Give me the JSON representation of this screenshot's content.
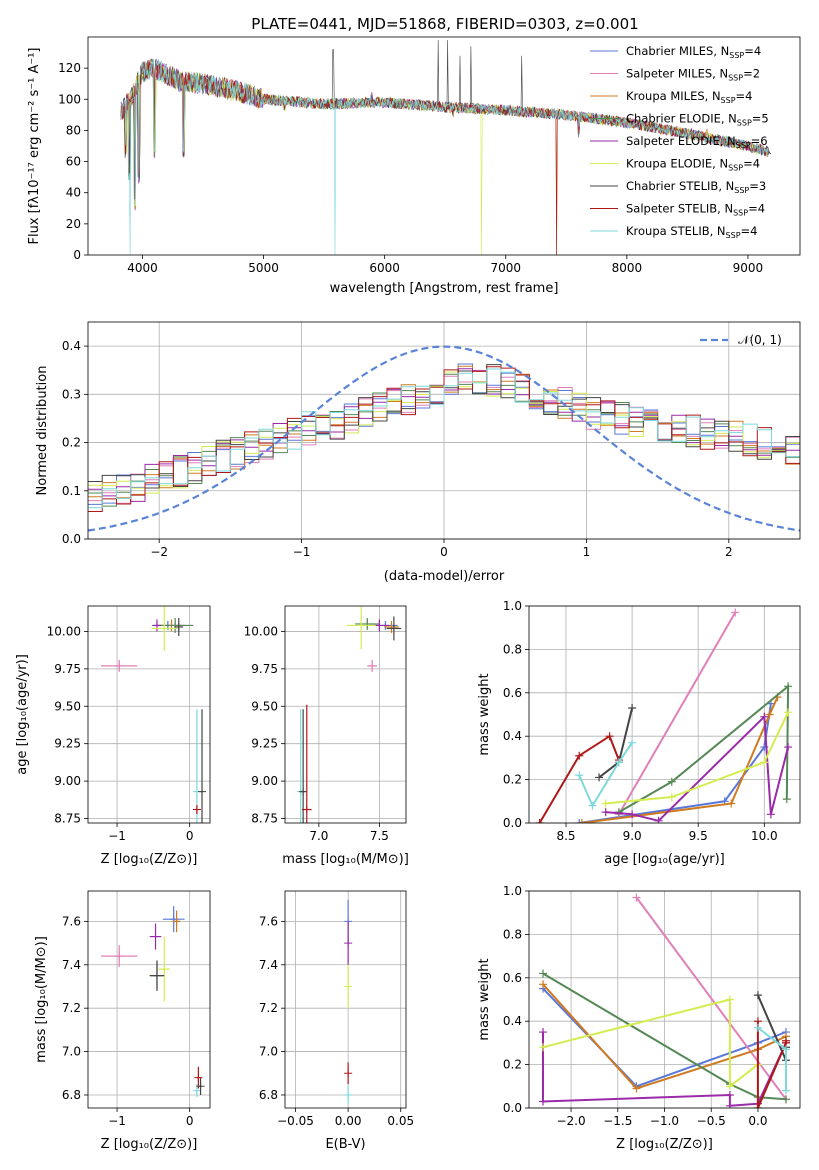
{
  "title": "PLATE=0441, MJD=51868, FIBERID=0303, z=0.001",
  "colors": {
    "Chabrier MILES": "#5a78d8",
    "Salpeter MILES": "#e07fb8",
    "Kroupa MILES": "#d07a20",
    "Chabrier ELODIE": "#558855",
    "Salpeter ELODIE": "#9a2aa8",
    "Kroupa ELODIE": "#d4ec50",
    "Chabrier STELIB": "#444444",
    "Salpeter STELIB": "#b01818",
    "Kroupa STELIB": "#7ed8dc",
    "normal": "#5a84d8"
  },
  "labels": {
    "spectrum_x": "wavelength [Angstrom, rest frame]",
    "spectrum_y": "Flux [fλ10⁻¹⁷ erg cm⁻² s⁻¹ A⁻¹]",
    "resid_x": "(data-model)/error",
    "resid_y": "Normed distribution",
    "normal_legend": "𝒩(0, 1)",
    "age_y": "age  [log₁₀(age/yr)]",
    "z_x": "Z [log₁₀(Z/Z⊙)]",
    "mass_x": "mass [log₁₀(M/M⊙)]",
    "mass_y": "mass [log₁₀(M/M⊙)]",
    "weight_y": "mass weight",
    "ebv_x": "E(B-V)"
  },
  "legend": [
    {
      "model": "Chabrier MILES",
      "label": "Chabrier MILES, N",
      "sub": "SSP",
      "n": "=4"
    },
    {
      "model": "Salpeter MILES",
      "label": "Salpeter MILES, N",
      "sub": "SSP",
      "n": "=2"
    },
    {
      "model": "Kroupa MILES",
      "label": "Kroupa MILES, N",
      "sub": "SSP",
      "n": "=4"
    },
    {
      "model": "Chabrier ELODIE",
      "label": "Chabrier ELODIE, N",
      "sub": "SSP",
      "n": "=5"
    },
    {
      "model": "Salpeter ELODIE",
      "label": "Salpeter ELODIE, N",
      "sub": "SSP",
      "n": "=6"
    },
    {
      "model": "Kroupa ELODIE",
      "label": "Kroupa ELODIE, N",
      "sub": "SSP",
      "n": "=4"
    },
    {
      "model": "Chabrier STELIB",
      "label": "Chabrier STELIB, N",
      "sub": "SSP",
      "n": "=3"
    },
    {
      "model": "Salpeter STELIB",
      "label": "Salpeter STELIB, N",
      "sub": "SSP",
      "n": "=4"
    },
    {
      "model": "Kroupa STELIB",
      "label": "Kroupa STELIB, N",
      "sub": "SSP",
      "n": "=4"
    }
  ],
  "chart_data": [
    {
      "id": "spectrum",
      "type": "line",
      "title": "PLATE=0441, MJD=51868, FIBERID=0303, z=0.001",
      "xlabel": "wavelength [Angstrom, rest frame]",
      "ylabel": "Flux [fλ10⁻¹⁷ erg cm⁻² s⁻¹ A⁻¹]",
      "xlim": [
        3550,
        9430
      ],
      "ylim": [
        0,
        140
      ],
      "xticks": [
        4000,
        5000,
        6000,
        7000,
        8000,
        9000
      ],
      "yticks": [
        0,
        20,
        40,
        60,
        80,
        100,
        120
      ],
      "legend_position": "top-right",
      "continuum": [
        [
          3820,
          92
        ],
        [
          3900,
          100
        ],
        [
          4000,
          118
        ],
        [
          4100,
          120
        ],
        [
          4300,
          112
        ],
        [
          4500,
          110
        ],
        [
          4800,
          105
        ],
        [
          5000,
          100
        ],
        [
          5500,
          97
        ],
        [
          6000,
          98
        ],
        [
          6500,
          95
        ],
        [
          7000,
          93
        ],
        [
          7500,
          90
        ],
        [
          8000,
          85
        ],
        [
          8500,
          78
        ],
        [
          9000,
          70
        ],
        [
          9190,
          66
        ]
      ],
      "absorption_dips": [
        [
          3860,
          62
        ],
        [
          3890,
          48
        ],
        [
          3935,
          28
        ],
        [
          3970,
          45
        ],
        [
          4100,
          60
        ],
        [
          4340,
          62
        ],
        [
          5175,
          92
        ],
        [
          5890,
          95
        ],
        [
          6563,
          88
        ],
        [
          7600,
          75
        ],
        [
          8540,
          72
        ],
        [
          8660,
          72
        ]
      ],
      "drops_to_zero": [
        {
          "series": "Kroupa STELIB",
          "x": 3900
        },
        {
          "series": "Kroupa STELIB",
          "x": 5590
        },
        {
          "series": "Kroupa ELODIE",
          "x": 6800
        },
        {
          "series": "Kroupa MILES",
          "x": 7420
        },
        {
          "series": "Salpeter STELIB",
          "x": 7420
        }
      ],
      "spikes": [
        [
          6440,
          138
        ],
        [
          6520,
          138
        ],
        [
          6620,
          128
        ],
        [
          6710,
          134
        ],
        [
          7130,
          128
        ],
        [
          5575,
          132
        ]
      ]
    },
    {
      "id": "residuals",
      "type": "histogram",
      "xlabel": "(data-model)/error",
      "ylabel": "Normed distribution",
      "xlim": [
        -2.5,
        2.5
      ],
      "ylim": [
        0,
        0.45
      ],
      "xticks": [
        -2,
        -1,
        0,
        1,
        2
      ],
      "yticks": [
        0.0,
        0.1,
        0.2,
        0.3,
        0.4
      ],
      "legend_position": "top-right",
      "bin_edges_start": -2.5,
      "bin_width": 0.1,
      "mean_profile": [
        0.09,
        0.1,
        0.105,
        0.11,
        0.12,
        0.13,
        0.14,
        0.15,
        0.16,
        0.17,
        0.18,
        0.19,
        0.2,
        0.21,
        0.22,
        0.23,
        0.235,
        0.24,
        0.25,
        0.26,
        0.27,
        0.28,
        0.29,
        0.3,
        0.31,
        0.32,
        0.33,
        0.33,
        0.33,
        0.32,
        0.31,
        0.3,
        0.29,
        0.28,
        0.27,
        0.26,
        0.255,
        0.25,
        0.245,
        0.24,
        0.235,
        0.23,
        0.225,
        0.22,
        0.215,
        0.21,
        0.205,
        0.2,
        0.195,
        0.19,
        0.185,
        0.18,
        0.175,
        0.17,
        0.16,
        0.15,
        0.14,
        0.13,
        0.12,
        0.115,
        0.11,
        0.1,
        0.09,
        0.08,
        0.07,
        0.065,
        0.06,
        0.055,
        0.05,
        0.045,
        0.04,
        0.035,
        0.03,
        0.025,
        0.025,
        0.02,
        0.02,
        0.02,
        0.02,
        0.02
      ],
      "normal_curve": {
        "mu": 0,
        "sigma": 1,
        "label": "𝒩(0, 1)"
      }
    },
    {
      "id": "z_vs_age",
      "type": "scatter",
      "xlabel": "Z [log₁₀(Z/Z⊙)]",
      "ylabel": "age  [log₁₀(age/yr)]",
      "xlim": [
        -1.4,
        0.28
      ],
      "ylim": [
        8.72,
        10.17
      ],
      "xticks": [
        -1,
        0
      ],
      "yticks": [
        8.75,
        9.0,
        9.25,
        9.5,
        9.75,
        10.0
      ],
      "points": [
        {
          "series": "Salpeter MILES",
          "x": -0.97,
          "y": 9.77,
          "xerr": 0.25,
          "yerr": 0.04
        },
        {
          "series": "Chabrier MILES",
          "x": -0.3,
          "y": 10.04,
          "xerr": 0.22,
          "yerr": 0.03
        },
        {
          "series": "Kroupa MILES",
          "x": -0.25,
          "y": 10.04,
          "xerr": 0.2,
          "yerr": 0.04
        },
        {
          "series": "Chabrier ELODIE",
          "x": -0.2,
          "y": 10.04,
          "xerr": 0.25,
          "yerr": 0.05
        },
        {
          "series": "Salpeter ELODIE",
          "x": -0.45,
          "y": 10.04,
          "xerr": 0.05,
          "yerr": 0.04
        },
        {
          "series": "Kroupa ELODIE",
          "x": -0.35,
          "y": 10.02,
          "xerr": 0.18,
          "yerr": 0.15
        },
        {
          "series": "Chabrier STELIB",
          "x": -0.15,
          "y": 10.03,
          "xerr": 0.06,
          "yerr": 0.06
        },
        {
          "series": "Kroupa STELIB",
          "x": 0.1,
          "y": 8.93,
          "xerr": 0.02,
          "yerr": 0.55
        },
        {
          "series": "Chabrier STELIB",
          "x": 0.17,
          "y": 8.93,
          "xerr": 0.02,
          "yerr": 0.55
        },
        {
          "series": "Salpeter STELIB",
          "x": 0.1,
          "y": 8.81,
          "xerr": 0.02,
          "yerr": 0.03
        }
      ]
    },
    {
      "id": "mass_vs_age",
      "type": "scatter",
      "xlabel": "mass [log₁₀(M/M⊙)]",
      "ylabel": "",
      "xlim": [
        6.72,
        7.72
      ],
      "ylim": [
        8.72,
        10.17
      ],
      "xticks": [
        7.0,
        7.5
      ],
      "yticks": [
        8.75,
        9.0,
        9.25,
        9.5,
        9.75,
        10.0
      ],
      "points": [
        {
          "series": "Salpeter MILES",
          "x": 7.44,
          "y": 9.77,
          "xerr": 0.04,
          "yerr": 0.04
        },
        {
          "series": "Chabrier MILES",
          "x": 7.55,
          "y": 10.04,
          "xerr": 0.1,
          "yerr": 0.03
        },
        {
          "series": "Kroupa MILES",
          "x": 7.6,
          "y": 10.03,
          "xerr": 0.06,
          "yerr": 0.04
        },
        {
          "series": "Chabrier ELODIE",
          "x": 7.4,
          "y": 10.05,
          "xerr": 0.1,
          "yerr": 0.04
        },
        {
          "series": "Salpeter ELODIE",
          "x": 7.5,
          "y": 10.04,
          "xerr": 0.08,
          "yerr": 0.04
        },
        {
          "series": "Kroupa ELODIE",
          "x": 7.35,
          "y": 10.04,
          "xerr": 0.12,
          "yerr": 0.16
        },
        {
          "series": "Chabrier STELIB",
          "x": 7.62,
          "y": 10.02,
          "xerr": 0.06,
          "yerr": 0.08
        },
        {
          "series": "Kroupa STELIB",
          "x": 6.85,
          "y": 8.93,
          "xerr": 0.02,
          "yerr": 0.55
        },
        {
          "series": "Chabrier STELIB",
          "x": 6.87,
          "y": 8.93,
          "xerr": 0.02,
          "yerr": 0.55
        },
        {
          "series": "Salpeter STELIB",
          "x": 6.9,
          "y": 8.81,
          "xerr": 0.04,
          "yerr": 0.7
        }
      ]
    },
    {
      "id": "age_vs_weight",
      "type": "line",
      "xlabel": "age  [log₁₀(age/yr)]",
      "ylabel": "mass weight",
      "xlim": [
        8.22,
        10.27
      ],
      "ylim": [
        0,
        1.0
      ],
      "xticks": [
        8.5,
        9.0,
        9.5,
        10.0
      ],
      "yticks": [
        0.0,
        0.2,
        0.4,
        0.6,
        0.8,
        1.0
      ],
      "series": [
        {
          "name": "Chabrier MILES",
          "x": [
            8.6,
            9.7,
            10.0,
            10.05
          ],
          "y": [
            0.0,
            0.1,
            0.35,
            0.55
          ]
        },
        {
          "name": "Salpeter MILES",
          "x": [
            8.9,
            9.78
          ],
          "y": [
            0.04,
            0.97
          ]
        },
        {
          "name": "Kroupa MILES",
          "x": [
            8.62,
            9.75,
            10.04,
            10.1
          ],
          "y": [
            0.0,
            0.09,
            0.5,
            0.58
          ]
        },
        {
          "name": "Chabrier ELODIE",
          "x": [
            8.9,
            9.3,
            10.18,
            10.17
          ],
          "y": [
            0.05,
            0.19,
            0.63,
            0.11
          ]
        },
        {
          "name": "Salpeter ELODIE",
          "x": [
            8.8,
            9.0,
            9.2,
            10.0,
            10.05,
            10.18
          ],
          "y": [
            0.05,
            0.04,
            0.01,
            0.49,
            0.04,
            0.35
          ]
        },
        {
          "name": "Kroupa ELODIE",
          "x": [
            8.8,
            9.3,
            10.0,
            10.18
          ],
          "y": [
            0.09,
            0.12,
            0.28,
            0.51
          ]
        },
        {
          "name": "Chabrier STELIB",
          "x": [
            8.75,
            8.9,
            9.0
          ],
          "y": [
            0.21,
            0.28,
            0.53
          ]
        },
        {
          "name": "Salpeter STELIB",
          "x": [
            8.3,
            8.6,
            8.83,
            8.9
          ],
          "y": [
            0.0,
            0.31,
            0.4,
            0.29
          ]
        },
        {
          "name": "Kroupa STELIB",
          "x": [
            8.6,
            8.7,
            8.9,
            9.0
          ],
          "y": [
            0.22,
            0.08,
            0.28,
            0.37
          ]
        }
      ]
    },
    {
      "id": "z_vs_mass",
      "type": "scatter",
      "xlabel": "Z [log₁₀(Z/Z⊙)]",
      "ylabel": "mass [log₁₀(M/M⊙)]",
      "xlim": [
        -1.4,
        0.28
      ],
      "ylim": [
        6.74,
        7.74
      ],
      "xticks": [
        -1,
        0
      ],
      "yticks": [
        6.8,
        7.0,
        7.2,
        7.4,
        7.6
      ],
      "points": [
        {
          "series": "Salpeter MILES",
          "x": -0.97,
          "y": 7.44,
          "xerr": 0.25,
          "yerr": 0.05
        },
        {
          "series": "Chabrier MILES",
          "x": -0.22,
          "y": 7.61,
          "xerr": 0.15,
          "yerr": 0.06
        },
        {
          "series": "Kroupa MILES",
          "x": -0.18,
          "y": 7.6,
          "xerr": 0.05,
          "yerr": 0.05
        },
        {
          "series": "Chabrier ELODIE",
          "x": -0.45,
          "y": 7.35,
          "xerr": 0.1,
          "yerr": 0.06
        },
        {
          "series": "Salpeter ELODIE",
          "x": -0.47,
          "y": 7.53,
          "xerr": 0.08,
          "yerr": 0.06
        },
        {
          "series": "Kroupa ELODIE",
          "x": -0.35,
          "y": 7.38,
          "xerr": 0.08,
          "yerr": 0.15
        },
        {
          "series": "Chabrier STELIB",
          "x": -0.45,
          "y": 7.35,
          "xerr": 0.1,
          "yerr": 0.07
        },
        {
          "series": "Kroupa STELIB",
          "x": 0.1,
          "y": 6.82,
          "xerr": 0.02,
          "yerr": 0.03
        },
        {
          "series": "Chabrier STELIB",
          "x": 0.15,
          "y": 6.84,
          "xerr": 0.02,
          "yerr": 0.04
        },
        {
          "series": "Salpeter STELIB",
          "x": 0.12,
          "y": 6.88,
          "xerr": 0.02,
          "yerr": 0.05
        }
      ]
    },
    {
      "id": "ebv_vs_mass",
      "type": "scatter",
      "xlabel": "E(B-V)",
      "ylabel": "",
      "xlim": [
        -0.06,
        0.055
      ],
      "ylim": [
        6.74,
        7.74
      ],
      "xticks": [
        -0.05,
        0.0,
        0.05
      ],
      "yticks": [
        6.8,
        7.0,
        7.2,
        7.4,
        7.6
      ],
      "points": [
        {
          "series": "Chabrier MILES",
          "x": 0.0,
          "y": 7.6,
          "xerr": 0,
          "yerr": 0.1
        },
        {
          "series": "Salpeter ELODIE",
          "x": 0.0,
          "y": 7.5,
          "xerr": 0,
          "yerr": 0.1
        },
        {
          "series": "Kroupa ELODIE",
          "x": 0.0,
          "y": 7.3,
          "xerr": 0,
          "yerr": 0.1
        },
        {
          "series": "Salpeter STELIB",
          "x": 0.0,
          "y": 6.9,
          "xerr": 0,
          "yerr": 0.05
        },
        {
          "series": "Kroupa STELIB",
          "x": 0.0,
          "y": 6.8,
          "xerr": 0,
          "yerr": 0.04
        }
      ]
    },
    {
      "id": "z_vs_weight",
      "type": "line",
      "xlabel": "Z [log₁₀(Z/Z⊙)]",
      "ylabel": "mass weight",
      "xlim": [
        -2.45,
        0.45
      ],
      "ylim": [
        0,
        1.0
      ],
      "xticks": [
        -2.0,
        -1.5,
        -1.0,
        -0.5,
        0.0
      ],
      "yticks": [
        0.0,
        0.2,
        0.4,
        0.6,
        0.8,
        1.0
      ],
      "series": [
        {
          "name": "Chabrier MILES",
          "x": [
            -2.3,
            -1.3,
            0.0,
            0.3
          ],
          "y": [
            0.55,
            0.1,
            0.3,
            0.35
          ]
        },
        {
          "name": "Salpeter MILES",
          "x": [
            -1.3,
            0.3
          ],
          "y": [
            0.97,
            0.04
          ]
        },
        {
          "name": "Kroupa MILES",
          "x": [
            -2.3,
            -1.3,
            0.0,
            0.3
          ],
          "y": [
            0.57,
            0.09,
            0.27,
            0.33
          ]
        },
        {
          "name": "Chabrier ELODIE",
          "x": [
            -2.3,
            -0.3,
            0.0,
            0.3
          ],
          "y": [
            0.62,
            0.11,
            0.05,
            0.04
          ]
        },
        {
          "name": "Salpeter ELODIE",
          "x": [
            -2.3,
            -2.3,
            -0.3,
            -0.3,
            0.0,
            0.3
          ],
          "y": [
            0.35,
            0.03,
            0.06,
            0.01,
            0.02,
            0.3
          ]
        },
        {
          "name": "Kroupa ELODIE",
          "x": [
            -2.3,
            -0.3,
            -0.3,
            0.0
          ],
          "y": [
            0.28,
            0.5,
            0.1,
            0.2
          ]
        },
        {
          "name": "Chabrier STELIB",
          "x": [
            0.0,
            0.3,
            0.3
          ],
          "y": [
            0.52,
            0.22,
            0.28
          ]
        },
        {
          "name": "Salpeter STELIB",
          "x": [
            0.0,
            0.0,
            0.3,
            0.3
          ],
          "y": [
            0.4,
            0.0,
            0.3,
            0.31
          ]
        },
        {
          "name": "Kroupa STELIB",
          "x": [
            0.0,
            0.3,
            0.3
          ],
          "y": [
            0.37,
            0.27,
            0.08
          ]
        }
      ]
    }
  ]
}
